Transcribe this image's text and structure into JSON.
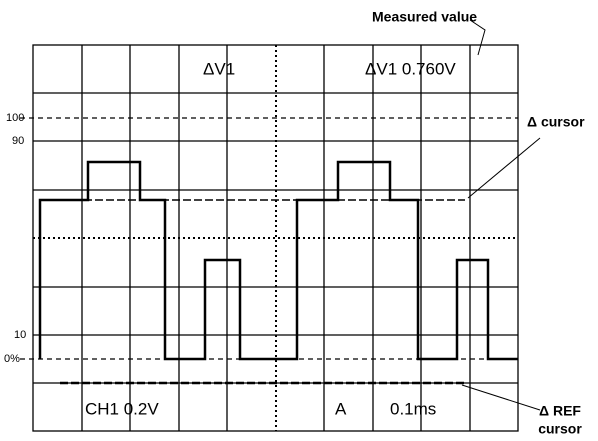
{
  "annotations": {
    "measured_value": "Measured value",
    "delta_cursor": "Δ cursor",
    "delta_ref_cursor": [
      "Δ REF",
      "cursor"
    ]
  },
  "screen": {
    "top_left": "ΔV1",
    "top_right": "ΔV1 0.760V",
    "bottom_channel": "CH1 0.2V",
    "bottom_trigger": "A",
    "bottom_time": "0.1ms"
  },
  "scale_labels": {
    "p100": "100",
    "p90": "90",
    "p10": "10",
    "p0": "0%"
  }
}
